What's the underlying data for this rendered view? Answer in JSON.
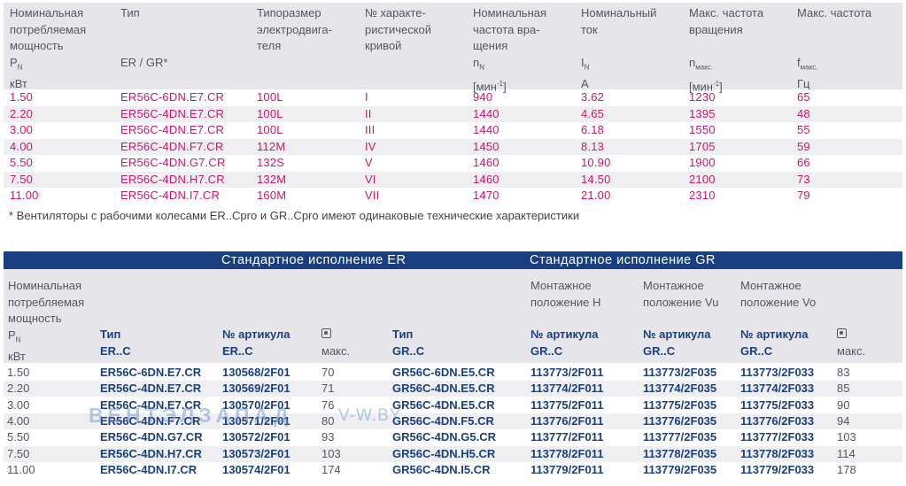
{
  "top_table": {
    "headers": [
      {
        "lines": [
          "Номинальная",
          "потребляемая",
          "мощность"
        ],
        "sym": "P",
        "sub": "N",
        "unit": "кВт"
      },
      {
        "lines": [
          "Тип"
        ],
        "sym": "ER / GR*",
        "sub": "",
        "unit": ""
      },
      {
        "lines": [
          "Типоразмер",
          "электродвига-",
          "теля"
        ],
        "sym": "",
        "sub": "",
        "unit": ""
      },
      {
        "lines": [
          "№ характе-",
          "ристической",
          "кривой"
        ],
        "sym": "",
        "sub": "",
        "unit": ""
      },
      {
        "lines": [
          "Номинальная",
          "частота вра-",
          "щения"
        ],
        "sym": "n",
        "sub": "N",
        "unit": "[мин-1]"
      },
      {
        "lines": [
          "Номинальный",
          "ток"
        ],
        "sym": "I",
        "sub": "N",
        "unit": "A"
      },
      {
        "lines": [
          "Макс. частота",
          "вращения"
        ],
        "sym": "n",
        "sub": "макс.",
        "unit": "[мин-1]"
      },
      {
        "lines": [
          "Макс. частота"
        ],
        "sym": "f",
        "sub": "макс.",
        "unit": "Гц"
      }
    ],
    "rows": [
      [
        "1.50",
        "ER56C-6DN.E7.CR",
        "100L",
        "I",
        "940",
        "3.62",
        "1230",
        "65"
      ],
      [
        "2.20",
        "ER56C-4DN.E7.CR",
        "100L",
        "II",
        "1440",
        "4.65",
        "1395",
        "48"
      ],
      [
        "3.00",
        "ER56C-4DN.E7.CR",
        "100L",
        "III",
        "1440",
        "6.18",
        "1550",
        "55"
      ],
      [
        "4.00",
        "ER56C-4DN.F7.CR",
        "112M",
        "IV",
        "1450",
        "8.13",
        "1705",
        "59"
      ],
      [
        "5.50",
        "ER56C-4DN.G7.CR",
        "132S",
        "V",
        "1460",
        "10.90",
        "1900",
        "66"
      ],
      [
        "7.50",
        "ER56C-4DN.H7.CR",
        "132M",
        "VI",
        "1460",
        "14.50",
        "2100",
        "73"
      ],
      [
        "11.00",
        "ER56C-4DN.I7.CR",
        "160M",
        "VII",
        "1470",
        "21.00",
        "2310",
        "79"
      ]
    ],
    "note": "* Вентиляторы с рабочими колесами ER..Cpro и GR..Cpro имеют одинаковые технические характеристики"
  },
  "bottom_table": {
    "section_er": "Стандартное исполнение ER",
    "section_gr": "Стандартное исполнение GR",
    "power_label": [
      "Номинальная",
      "потребляемая",
      "мощность"
    ],
    "power_sym": "P",
    "power_sub": "N",
    "power_unit": "кВт",
    "type_er": [
      "Тип",
      "ER..C"
    ],
    "art_er": [
      "№ артикула",
      "ER..C"
    ],
    "mass_er_label": "макс.",
    "type_gr": [
      "Тип",
      "GR..C"
    ],
    "mount_h": [
      "Монтажное",
      "положение H"
    ],
    "mount_vu": [
      "Монтажное",
      "положение Vu"
    ],
    "mount_vo": [
      "Монтажное",
      "положение Vo"
    ],
    "art_gr_h": [
      "№ артикула",
      "GR..C"
    ],
    "art_gr_vu": [
      "№ артикула",
      "GR..C"
    ],
    "art_gr_vo": [
      "№ артикула",
      "GR..C"
    ],
    "mass_gr_label": "макс.",
    "rows": [
      [
        "1.50",
        "ER56C-6DN.E7.CR",
        "130568/2F01",
        "70",
        "GR56C-6DN.E5.CR",
        "113773/2F011",
        "113773/2F035",
        "113773/2F033",
        "83"
      ],
      [
        "2.20",
        "ER56C-4DN.E7.CR",
        "130569/2F01",
        "71",
        "GR56C-4DN.E5.CR",
        "113774/2F011",
        "113774/2F035",
        "113774/2F033",
        "85"
      ],
      [
        "3.00",
        "ER56C-4DN.E7.CR",
        "130570/2F01",
        "76",
        "GR56C-4DN.E5.CR",
        "113775/2F011",
        "113775/2F035",
        "113775/2F033",
        "90"
      ],
      [
        "4.00",
        "ER56C-4DN.F7.CR",
        "130571/2F01",
        "80",
        "GR56C-4DN.F5.CR",
        "113776/2F011",
        "113776/2F035",
        "113776/2F033",
        "94"
      ],
      [
        "5.50",
        "ER56C-4DN.G7.CR",
        "130572/2F01",
        "93",
        "GR56C-4DN.G5.CR",
        "113777/2F011",
        "113777/2F035",
        "113777/2F033",
        "103"
      ],
      [
        "7.50",
        "ER56C-4DN.H7.CR",
        "130573/2F01",
        "103",
        "GR56C-4DN.H5.CR",
        "113778/2F011",
        "113778/2F035",
        "113778/2F033",
        "114"
      ],
      [
        "11.00",
        "ER56C-4DN.I7.CR",
        "130574/2F01",
        "174",
        "GR56C-4DN.I5.CR",
        "113779/2F011",
        "113779/2F035",
        "113779/2F033",
        "178"
      ]
    ]
  },
  "watermark": {
    "brand": "ВЕНТЭЛЗАПАД",
    "site": "V-W.BY"
  },
  "colors": {
    "magenta": "#c8176e",
    "navy": "#1a3f80",
    "gray_text": "#555560",
    "header_bg": "#e6e6ea"
  }
}
